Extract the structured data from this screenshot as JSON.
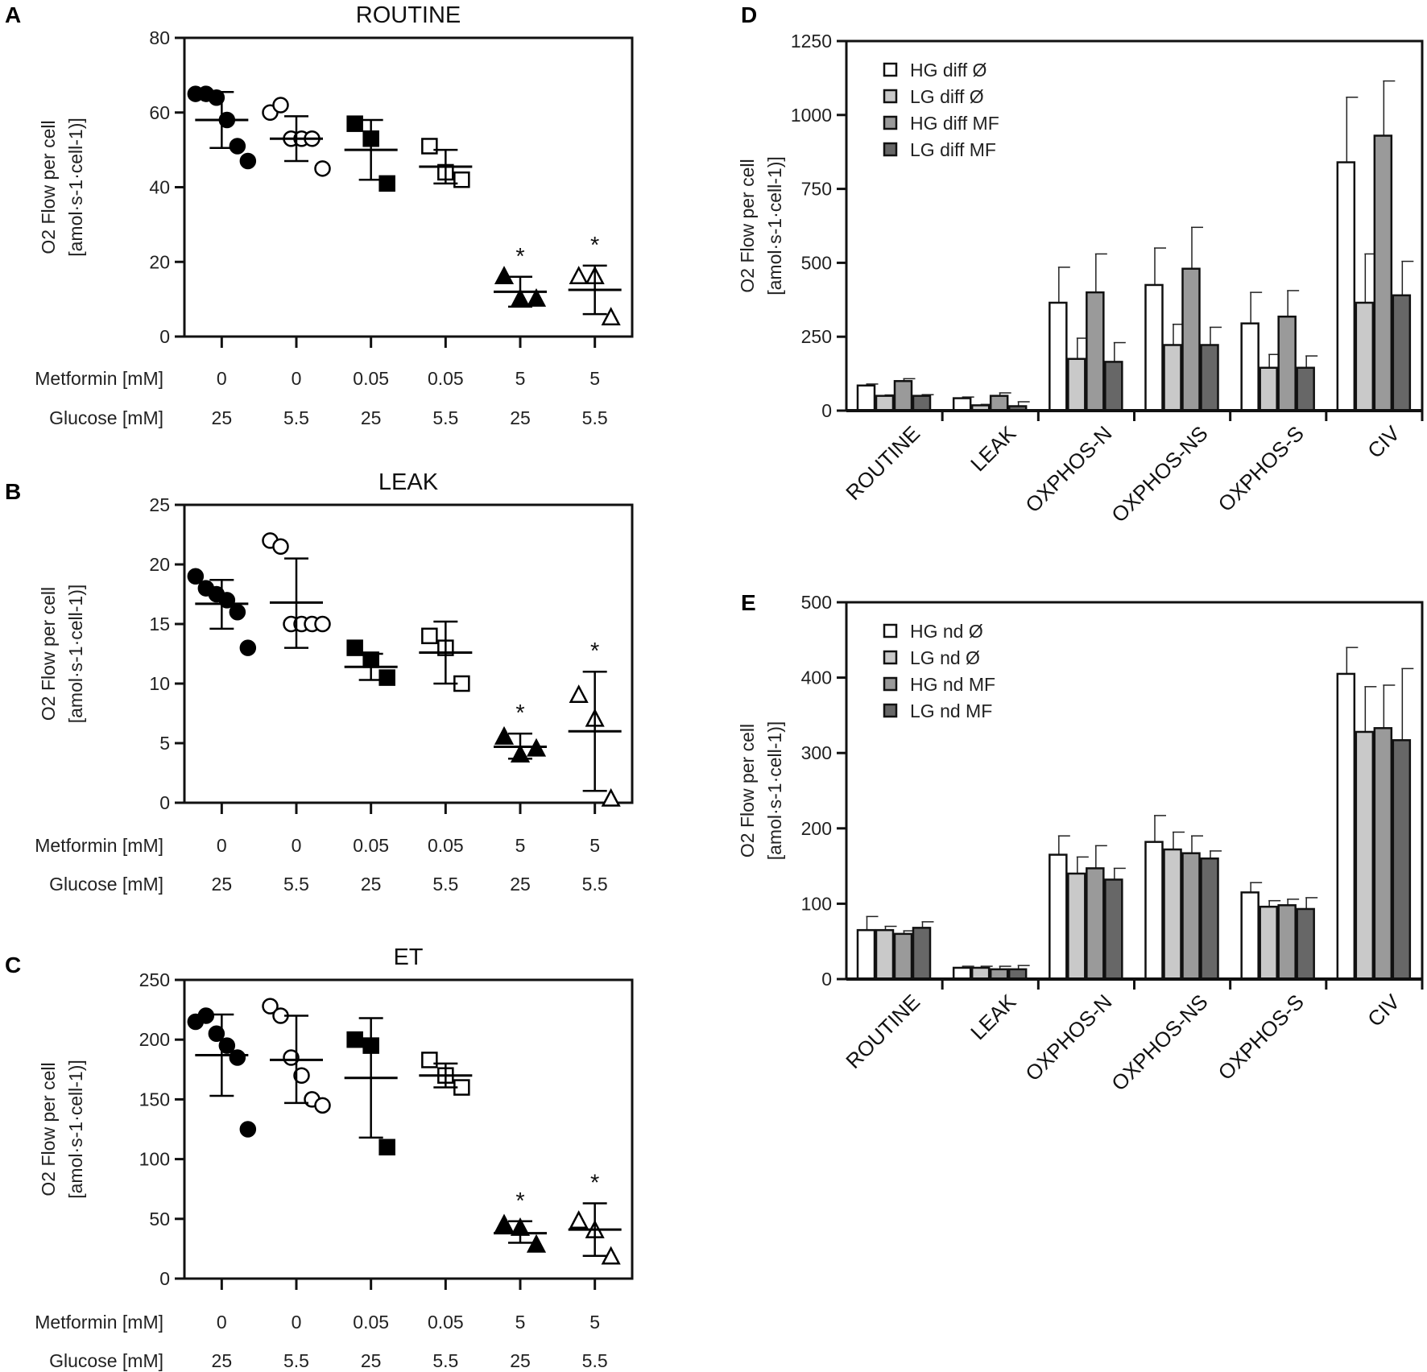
{
  "chart_data": [
    {
      "panel": "A",
      "type": "scatter",
      "title": "ROUTINE",
      "ylabel": [
        "O2 Flow per cell",
        "[amol·s-1·cell-1)]"
      ],
      "ylim": [
        0,
        80
      ],
      "yticks": [
        0,
        20,
        40,
        60,
        80
      ],
      "row_labels": [
        "Metformin [mM]",
        "Glucose [mM]"
      ],
      "metformin": [
        "0",
        "0",
        "0.05",
        "0.05",
        "5",
        "5"
      ],
      "glucose": [
        "25",
        "5.5",
        "25",
        "5.5",
        "25",
        "5.5"
      ],
      "groups": [
        {
          "marker": "circle",
          "filled": true,
          "points": [
            65,
            65,
            64,
            58,
            51,
            47
          ],
          "mean": 58,
          "sd_hi": 65.5,
          "sd_lo": 50.5,
          "star": ""
        },
        {
          "marker": "circle",
          "filled": false,
          "points": [
            60,
            62,
            53,
            53,
            53,
            45
          ],
          "mean": 53,
          "sd_hi": 59,
          "sd_lo": 47,
          "star": ""
        },
        {
          "marker": "square",
          "filled": true,
          "points": [
            57,
            53,
            41
          ],
          "mean": 50,
          "sd_hi": 58,
          "sd_lo": 42,
          "star": ""
        },
        {
          "marker": "square",
          "filled": false,
          "points": [
            51,
            44,
            42
          ],
          "mean": 45.5,
          "sd_hi": 50,
          "sd_lo": 41,
          "star": ""
        },
        {
          "marker": "triangle",
          "filled": true,
          "points": [
            16,
            10,
            10
          ],
          "mean": 12,
          "sd_hi": 16,
          "sd_lo": 8,
          "star": "*"
        },
        {
          "marker": "triangle",
          "filled": false,
          "points": [
            16,
            16,
            5
          ],
          "mean": 12.5,
          "sd_hi": 19,
          "sd_lo": 6,
          "star": "*"
        }
      ]
    },
    {
      "panel": "B",
      "type": "scatter",
      "title": "LEAK",
      "ylabel": [
        "O2 Flow per cell",
        "[amol·s-1·cell-1)]"
      ],
      "ylim": [
        0,
        25
      ],
      "yticks": [
        0,
        5,
        10,
        15,
        20,
        25
      ],
      "row_labels": [
        "Metformin [mM]",
        "Glucose [mM]"
      ],
      "metformin": [
        "0",
        "0",
        "0.05",
        "0.05",
        "5",
        "5"
      ],
      "glucose": [
        "25",
        "5.5",
        "25",
        "5.5",
        "25",
        "5.5"
      ],
      "groups": [
        {
          "marker": "circle",
          "filled": true,
          "points": [
            19,
            18,
            17.5,
            17,
            16,
            13
          ],
          "mean": 16.7,
          "sd_hi": 18.7,
          "sd_lo": 14.6,
          "star": ""
        },
        {
          "marker": "circle",
          "filled": false,
          "points": [
            22,
            21.5,
            15,
            15,
            15,
            15
          ],
          "mean": 16.8,
          "sd_hi": 20.5,
          "sd_lo": 13,
          "star": ""
        },
        {
          "marker": "square",
          "filled": true,
          "points": [
            13,
            12,
            10.5
          ],
          "mean": 11.4,
          "sd_hi": 12.5,
          "sd_lo": 10.3,
          "star": ""
        },
        {
          "marker": "square",
          "filled": false,
          "points": [
            14,
            13,
            10
          ],
          "mean": 12.6,
          "sd_hi": 15.2,
          "sd_lo": 10,
          "star": ""
        },
        {
          "marker": "triangle",
          "filled": true,
          "points": [
            5.5,
            4,
            4.5
          ],
          "mean": 4.7,
          "sd_hi": 5.8,
          "sd_lo": 3.7,
          "star": "*"
        },
        {
          "marker": "triangle",
          "filled": false,
          "points": [
            9,
            7,
            0.3
          ],
          "mean": 6,
          "sd_hi": 11,
          "sd_lo": 1,
          "star": "*"
        }
      ]
    },
    {
      "panel": "C",
      "type": "scatter",
      "title": "ET",
      "ylabel": [
        "O2 Flow per cell",
        "[amol·s-1·cell-1)]"
      ],
      "ylim": [
        0,
        250
      ],
      "yticks": [
        0,
        50,
        100,
        150,
        200,
        250
      ],
      "row_labels": [
        "Metformin [mM]",
        "Glucose [mM]"
      ],
      "metformin": [
        "0",
        "0",
        "0.05",
        "0.05",
        "5",
        "5"
      ],
      "glucose": [
        "25",
        "5.5",
        "25",
        "5.5",
        "25",
        "5.5"
      ],
      "groups": [
        {
          "marker": "circle",
          "filled": true,
          "points": [
            215,
            220,
            205,
            195,
            185,
            125
          ],
          "mean": 187,
          "sd_hi": 221,
          "sd_lo": 153,
          "star": ""
        },
        {
          "marker": "circle",
          "filled": false,
          "points": [
            228,
            220,
            185,
            170,
            150,
            145
          ],
          "mean": 183,
          "sd_hi": 220,
          "sd_lo": 147,
          "star": ""
        },
        {
          "marker": "square",
          "filled": true,
          "points": [
            200,
            195,
            110
          ],
          "mean": 168,
          "sd_hi": 218,
          "sd_lo": 118,
          "star": ""
        },
        {
          "marker": "square",
          "filled": false,
          "points": [
            183,
            170,
            160
          ],
          "mean": 170,
          "sd_hi": 180,
          "sd_lo": 160,
          "star": ""
        },
        {
          "marker": "triangle",
          "filled": true,
          "points": [
            45,
            42,
            28
          ],
          "mean": 38,
          "sd_hi": 48,
          "sd_lo": 30,
          "star": "*"
        },
        {
          "marker": "triangle",
          "filled": false,
          "points": [
            48,
            40,
            18
          ],
          "mean": 41,
          "sd_hi": 63,
          "sd_lo": 19,
          "star": "*"
        }
      ]
    },
    {
      "panel": "D",
      "type": "bar",
      "ylabel": [
        "O2 Flow per cell",
        "[amol·s-1·cell-1)]"
      ],
      "ylim": [
        0,
        1250
      ],
      "yticks": [
        0,
        250,
        500,
        750,
        1000,
        1250
      ],
      "categories": [
        "ROUTINE",
        "LEAK",
        "OXPHOS-N",
        "OXPHOS-NS",
        "OXPHOS-S",
        "CIV"
      ],
      "legend_position": "top-left",
      "series": [
        {
          "name": "HG diff Ø",
          "color": "#ffffff",
          "values": [
            85,
            42,
            365,
            425,
            295,
            840
          ],
          "errors": [
            5,
            4,
            120,
            125,
            105,
            220
          ]
        },
        {
          "name": "LG diff Ø",
          "color": "#c9c9c9",
          "values": [
            50,
            18,
            175,
            222,
            145,
            365
          ],
          "errors": [
            3,
            3,
            70,
            70,
            45,
            165
          ]
        },
        {
          "name": "HG diff MF",
          "color": "#9a9a9a",
          "values": [
            100,
            50,
            400,
            480,
            318,
            930
          ],
          "errors": [
            8,
            10,
            130,
            140,
            88,
            185
          ]
        },
        {
          "name": "LG diff MF",
          "color": "#676767",
          "values": [
            50,
            15,
            165,
            222,
            145,
            390
          ],
          "errors": [
            4,
            15,
            65,
            60,
            40,
            115
          ]
        }
      ]
    },
    {
      "panel": "E",
      "type": "bar",
      "ylabel": [
        "O2 Flow per cell",
        "[amol·s-1·cell-1)]"
      ],
      "ylim": [
        0,
        500
      ],
      "yticks": [
        0,
        100,
        200,
        300,
        400,
        500
      ],
      "categories": [
        "ROUTINE",
        "LEAK",
        "OXPHOS-N",
        "OXPHOS-NS",
        "OXPHOS-S",
        "CIV"
      ],
      "legend_position": "top-left",
      "series": [
        {
          "name": "HG nd Ø",
          "color": "#ffffff",
          "values": [
            65,
            15,
            165,
            182,
            115,
            405
          ],
          "errors": [
            18,
            2,
            25,
            35,
            13,
            35
          ]
        },
        {
          "name": "LG nd Ø",
          "color": "#c9c9c9",
          "values": [
            65,
            15,
            140,
            172,
            96,
            328
          ],
          "errors": [
            5,
            2,
            22,
            23,
            8,
            60
          ]
        },
        {
          "name": "HG nd MF",
          "color": "#9a9a9a",
          "values": [
            60,
            13,
            147,
            167,
            98,
            333
          ],
          "errors": [
            4,
            4,
            30,
            23,
            8,
            57
          ]
        },
        {
          "name": "LG nd MF",
          "color": "#676767",
          "values": [
            68,
            13,
            132,
            160,
            93,
            317
          ],
          "errors": [
            8,
            5,
            15,
            10,
            15,
            95
          ]
        }
      ]
    }
  ]
}
